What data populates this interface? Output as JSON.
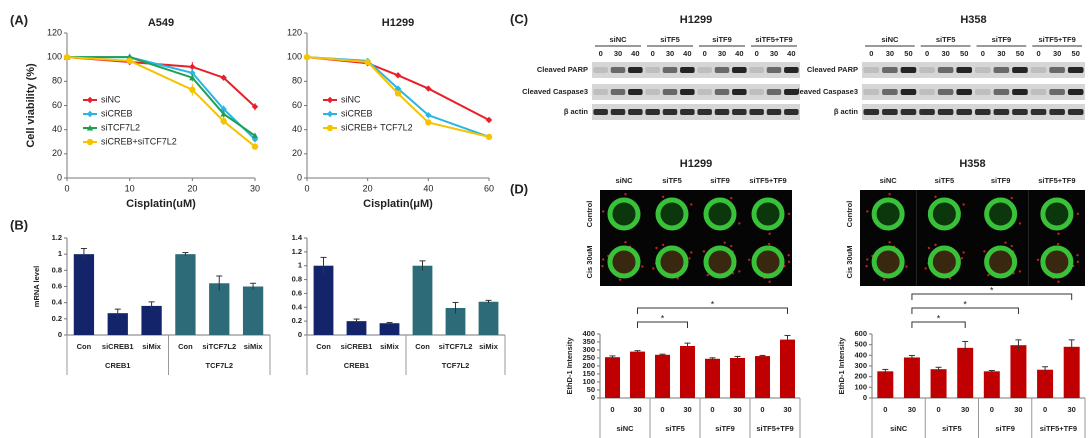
{
  "chart_data": [
    {
      "type": "line",
      "panel": "(A)",
      "title": "A549",
      "xlabel": "Cisplatin(uM)",
      "ylabel": "Cell viability (%)",
      "x": [
        0,
        10,
        20,
        25,
        30
      ],
      "xlim": [
        0,
        30
      ],
      "xticks": [
        0,
        10,
        20,
        30
      ],
      "ylim": [
        0,
        120
      ],
      "yticks": [
        0,
        20,
        40,
        60,
        80,
        100,
        120
      ],
      "legend": "lower left",
      "series": [
        {
          "name": "siNC",
          "color": "#e8202a",
          "marker": "diamond",
          "values": [
            100,
            96,
            92,
            83,
            59
          ],
          "errors": [
            0,
            2,
            4,
            2,
            3
          ]
        },
        {
          "name": "siCREB",
          "color": "#29b6e6",
          "marker": "diamond",
          "values": [
            100,
            100,
            87,
            57,
            32
          ],
          "errors": [
            0,
            3,
            3,
            3,
            2
          ]
        },
        {
          "name": "siTCF7L2",
          "color": "#22a052",
          "marker": "triangle",
          "values": [
            100,
            100,
            83,
            53,
            35
          ],
          "errors": [
            0,
            2,
            3,
            3,
            2
          ]
        },
        {
          "name": "siCREB+siTCF7L2",
          "color": "#f7c200",
          "marker": "circle",
          "values": [
            100,
            97,
            73,
            47,
            26
          ],
          "errors": [
            0,
            2,
            5,
            3,
            2
          ]
        }
      ]
    },
    {
      "type": "line",
      "title": "H1299",
      "xlabel": "Cisplatin(μM)",
      "x": [
        0,
        20,
        30,
        40,
        60
      ],
      "xlim": [
        0,
        60
      ],
      "xticks": [
        0,
        20,
        40,
        60
      ],
      "ylim": [
        0,
        120
      ],
      "yticks": [
        0,
        20,
        40,
        60,
        80,
        100,
        120
      ],
      "legend": "lower left",
      "series": [
        {
          "name": "siNC",
          "color": "#e8202a",
          "marker": "diamond",
          "values": [
            100,
            95,
            85,
            74,
            48
          ],
          "errors": [
            0,
            1,
            1,
            1,
            1
          ]
        },
        {
          "name": "siCREB",
          "color": "#29b6e6",
          "marker": "diamond",
          "values": [
            100,
            97,
            74,
            52,
            34
          ],
          "errors": [
            0,
            2,
            2,
            2,
            1
          ]
        },
        {
          "name": "siCREB+ TCF7L2",
          "color": "#f7c200",
          "marker": "circle",
          "values": [
            100,
            96,
            70,
            46,
            34
          ],
          "errors": [
            0,
            1,
            1,
            1,
            1
          ]
        }
      ]
    },
    {
      "type": "bar",
      "panel": "(B)",
      "ylabel": "mRNA level",
      "ylim": [
        0,
        1.2
      ],
      "yticks": [
        0,
        0.2,
        0.4,
        0.6,
        0.8,
        1,
        1.2
      ],
      "groups": [
        {
          "name": "CREB1",
          "color": "#14246a",
          "categories": [
            "Con",
            "siCREB1",
            "siMix"
          ],
          "values": [
            1.0,
            0.27,
            0.36
          ],
          "errors": [
            0.07,
            0.05,
            0.05
          ]
        },
        {
          "name": "TCF7L2",
          "color": "#2e6b78",
          "categories": [
            "Con",
            "siTCF7L2",
            "siMix"
          ],
          "values": [
            1.0,
            0.64,
            0.6
          ],
          "errors": [
            0.02,
            0.09,
            0.04
          ]
        }
      ]
    },
    {
      "type": "bar",
      "ylim": [
        0,
        1.4
      ],
      "yticks": [
        0,
        0.2,
        0.4,
        0.6,
        0.8,
        1,
        1.2,
        1.4
      ],
      "groups": [
        {
          "name": "CREB1",
          "color": "#14246a",
          "categories": [
            "Con",
            "siCREB1",
            "siMix"
          ],
          "values": [
            1.0,
            0.2,
            0.17
          ],
          "errors": [
            0.12,
            0.03,
            0.01
          ]
        },
        {
          "name": "TCF7L2",
          "color": "#2e6b78",
          "categories": [
            "Con",
            "siTCF7L2",
            "siMix"
          ],
          "values": [
            1.0,
            0.39,
            0.48
          ],
          "errors": [
            0.07,
            0.08,
            0.02
          ]
        }
      ]
    },
    {
      "type": "bar",
      "ylabel": "EthD-1 Intensity",
      "ylim": [
        0,
        400
      ],
      "yticks": [
        0,
        50,
        100,
        150,
        200,
        250,
        300,
        350,
        400
      ],
      "groups": [
        {
          "name": "siNC",
          "color": "#c00000",
          "categories": [
            "0",
            "30"
          ],
          "values": [
            255,
            290
          ],
          "errors": [
            8,
            6
          ]
        },
        {
          "name": "siTF5",
          "color": "#c00000",
          "categories": [
            "0",
            "30"
          ],
          "values": [
            270,
            325
          ],
          "errors": [
            4,
            18
          ]
        },
        {
          "name": "siTF9",
          "color": "#c00000",
          "categories": [
            "0",
            "30"
          ],
          "values": [
            245,
            250
          ],
          "errors": [
            6,
            10
          ]
        },
        {
          "name": "siTF5+TF9",
          "color": "#c00000",
          "categories": [
            "0",
            "30"
          ],
          "values": [
            262,
            365
          ],
          "errors": [
            4,
            26
          ]
        }
      ],
      "brackets": [
        {
          "label": "*",
          "from": [
            0,
            1
          ],
          "to": [
            1,
            1
          ]
        },
        {
          "label": "*",
          "from": [
            0,
            1
          ],
          "to": [
            3,
            1
          ]
        }
      ]
    },
    {
      "type": "bar",
      "ylabel": "EthD-1 Intensity",
      "ylim": [
        0,
        600
      ],
      "yticks": [
        0,
        100,
        200,
        300,
        400,
        500,
        600
      ],
      "groups": [
        {
          "name": "siNC",
          "color": "#c00000",
          "categories": [
            "0",
            "30"
          ],
          "values": [
            250,
            380
          ],
          "errors": [
            18,
            18
          ]
        },
        {
          "name": "siTF5",
          "color": "#c00000",
          "categories": [
            "0",
            "30"
          ],
          "values": [
            270,
            470
          ],
          "errors": [
            18,
            60
          ]
        },
        {
          "name": "siTF9",
          "color": "#c00000",
          "categories": [
            "0",
            "30"
          ],
          "values": [
            250,
            495
          ],
          "errors": [
            8,
            50
          ]
        },
        {
          "name": "siTF5+TF9",
          "color": "#c00000",
          "categories": [
            "0",
            "30"
          ],
          "values": [
            265,
            480
          ],
          "errors": [
            28,
            65
          ]
        }
      ],
      "brackets": [
        {
          "label": "*",
          "from": [
            0,
            1
          ],
          "to": [
            1,
            1
          ]
        },
        {
          "label": "*",
          "from": [
            0,
            1
          ],
          "to": [
            2,
            1
          ]
        },
        {
          "label": "*",
          "from": [
            0,
            1
          ],
          "to": [
            3,
            1
          ]
        }
      ]
    }
  ],
  "blots": {
    "label": "(C)",
    "rows": [
      "Cleaved PARP",
      "Cleaved Caspase3",
      "β actin"
    ],
    "panels": [
      {
        "title": "H1299",
        "lanes": [
          {
            "name": "siNC",
            "doses": [
              "0",
              "30",
              "40"
            ]
          },
          {
            "name": "siTF5",
            "doses": [
              "0",
              "30",
              "40"
            ]
          },
          {
            "name": "siTF9",
            "doses": [
              "0",
              "30",
              "40"
            ]
          },
          {
            "name": "siTF5+TF9",
            "doses": [
              "0",
              "30",
              "40"
            ]
          }
        ]
      },
      {
        "title": "H358",
        "lanes": [
          {
            "name": "siNC",
            "doses": [
              "0",
              "30",
              "50"
            ]
          },
          {
            "name": "siTF5",
            "doses": [
              "0",
              "30",
              "50"
            ]
          },
          {
            "name": "siTF9",
            "doses": [
              "0",
              "30",
              "50"
            ]
          },
          {
            "name": "siTF5+TF9",
            "doses": [
              "0",
              "30",
              "50"
            ]
          }
        ]
      }
    ]
  },
  "images": {
    "label": "(D)",
    "rows": [
      "Control",
      "Cis 30uM"
    ],
    "panels": [
      {
        "title": "H1299",
        "columns": [
          "siNC",
          "siTF5",
          "siTF9",
          "siTF5+TF9"
        ]
      },
      {
        "title": "H358",
        "columns": [
          "siNC",
          "siTF5",
          "siTF9",
          "siTF5+TF9"
        ]
      }
    ]
  }
}
